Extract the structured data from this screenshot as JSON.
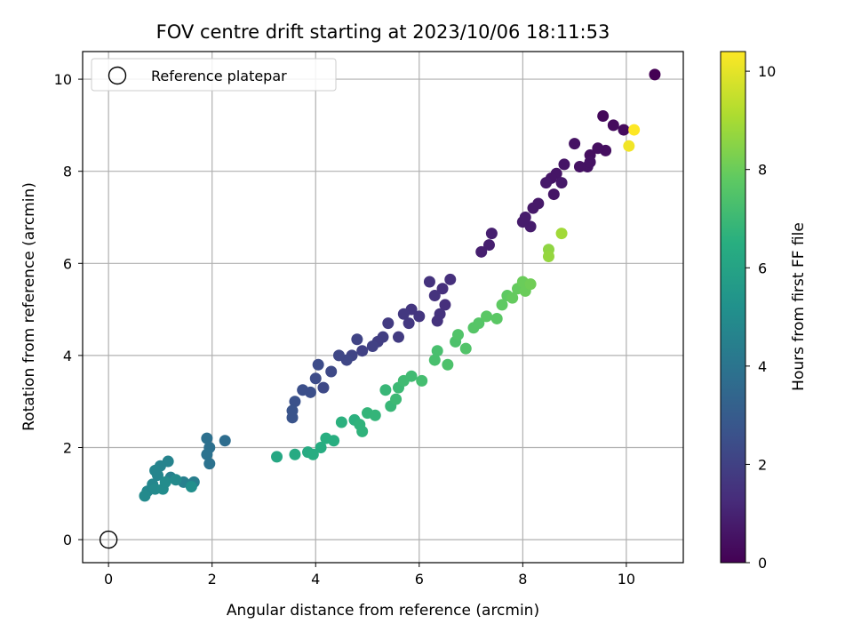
{
  "chart_data": {
    "type": "scatter",
    "title": "FOV centre drift starting at 2023/10/06 18:11:53",
    "xlabel": "Angular distance from reference (arcmin)",
    "ylabel": "Rotation from reference (arcmin)",
    "xlim": [
      -0.5,
      11.1
    ],
    "ylim": [
      -0.5,
      10.6
    ],
    "xticks": [
      0,
      2,
      4,
      6,
      8,
      10
    ],
    "yticks": [
      0,
      2,
      4,
      6,
      8,
      10
    ],
    "grid": true,
    "legend": {
      "placement": "top-left",
      "entries": [
        "Reference platepar"
      ]
    },
    "reference_point": {
      "x": 0,
      "y": 0
    },
    "colorbar": {
      "label": "Hours from first FF file",
      "range": [
        0,
        10.4
      ],
      "ticks": [
        0,
        2,
        4,
        6,
        8,
        10
      ],
      "colormap": "viridis"
    },
    "points": [
      [
        10.55,
        10.1,
        0.0
      ],
      [
        9.55,
        9.2,
        0.2
      ],
      [
        9.75,
        9.0,
        0.3
      ],
      [
        9.95,
        8.9,
        0.3
      ],
      [
        9.6,
        8.45,
        0.4
      ],
      [
        9.45,
        8.5,
        0.4
      ],
      [
        9.3,
        8.35,
        0.4
      ],
      [
        9.25,
        8.1,
        0.5
      ],
      [
        9.1,
        8.1,
        0.5
      ],
      [
        9.0,
        8.6,
        0.5
      ],
      [
        9.3,
        8.2,
        0.5
      ],
      [
        8.8,
        8.15,
        0.6
      ],
      [
        8.65,
        7.95,
        0.6
      ],
      [
        8.55,
        7.85,
        0.6
      ],
      [
        8.6,
        7.5,
        0.6
      ],
      [
        8.3,
        7.3,
        0.7
      ],
      [
        8.45,
        7.75,
        0.7
      ],
      [
        8.75,
        7.75,
        0.7
      ],
      [
        8.2,
        7.2,
        0.7
      ],
      [
        8.05,
        7.0,
        0.8
      ],
      [
        8.15,
        6.8,
        0.8
      ],
      [
        8.0,
        6.9,
        0.8
      ],
      [
        7.4,
        6.65,
        0.9
      ],
      [
        7.35,
        6.4,
        0.9
      ],
      [
        7.2,
        6.25,
        0.9
      ],
      [
        6.6,
        5.65,
        1.4
      ],
      [
        6.45,
        5.45,
        1.4
      ],
      [
        6.3,
        5.3,
        1.5
      ],
      [
        6.2,
        5.6,
        1.5
      ],
      [
        6.0,
        4.85,
        1.6
      ],
      [
        5.85,
        5.0,
        1.6
      ],
      [
        5.7,
        4.9,
        1.7
      ],
      [
        5.8,
        4.7,
        1.7
      ],
      [
        5.6,
        4.4,
        1.8
      ],
      [
        5.4,
        4.7,
        1.8
      ],
      [
        5.3,
        4.4,
        1.9
      ],
      [
        5.2,
        4.3,
        1.9
      ],
      [
        5.1,
        4.2,
        2.0
      ],
      [
        4.9,
        4.1,
        2.0
      ],
      [
        4.8,
        4.35,
        2.1
      ],
      [
        4.7,
        4.0,
        2.1
      ],
      [
        4.6,
        3.9,
        2.2
      ],
      [
        4.45,
        4.0,
        2.2
      ],
      [
        4.3,
        3.65,
        2.3
      ],
      [
        4.15,
        3.3,
        2.3
      ],
      [
        4.05,
        3.8,
        2.4
      ],
      [
        4.0,
        3.5,
        2.4
      ],
      [
        3.9,
        3.2,
        2.5
      ],
      [
        3.75,
        3.25,
        2.5
      ],
      [
        3.6,
        3.0,
        2.6
      ],
      [
        3.55,
        2.8,
        2.7
      ],
      [
        3.55,
        2.65,
        2.7
      ],
      [
        6.5,
        5.1,
        1.4
      ],
      [
        6.4,
        4.9,
        1.5
      ],
      [
        6.35,
        4.75,
        1.5
      ],
      [
        1.9,
        2.2,
        3.8
      ],
      [
        1.95,
        2.0,
        3.8
      ],
      [
        1.9,
        1.85,
        3.9
      ],
      [
        1.95,
        1.65,
        3.9
      ],
      [
        2.25,
        2.15,
        3.7
      ],
      [
        1.65,
        1.25,
        4.4
      ],
      [
        1.45,
        1.25,
        4.5
      ],
      [
        1.2,
        1.35,
        4.5
      ],
      [
        1.15,
        1.7,
        4.6
      ],
      [
        1.0,
        1.6,
        4.6
      ],
      [
        0.95,
        1.4,
        4.7
      ],
      [
        0.9,
        1.5,
        4.7
      ],
      [
        0.85,
        1.2,
        4.8
      ],
      [
        0.75,
        1.05,
        4.8
      ],
      [
        0.7,
        0.95,
        4.9
      ],
      [
        0.9,
        1.1,
        4.9
      ],
      [
        1.05,
        1.1,
        5.0
      ],
      [
        1.1,
        1.25,
        5.0
      ],
      [
        1.3,
        1.3,
        4.9
      ],
      [
        1.6,
        1.15,
        5.1
      ],
      [
        3.25,
        1.8,
        6.2
      ],
      [
        3.6,
        1.85,
        6.3
      ],
      [
        3.85,
        1.9,
        6.3
      ],
      [
        3.95,
        1.85,
        6.4
      ],
      [
        4.1,
        2.0,
        6.4
      ],
      [
        4.2,
        2.2,
        6.5
      ],
      [
        4.35,
        2.15,
        6.5
      ],
      [
        4.5,
        2.55,
        6.6
      ],
      [
        4.75,
        2.6,
        6.6
      ],
      [
        4.85,
        2.5,
        6.7
      ],
      [
        4.9,
        2.35,
        6.7
      ],
      [
        5.0,
        2.75,
        6.8
      ],
      [
        5.15,
        2.7,
        6.8
      ],
      [
        5.35,
        3.25,
        6.9
      ],
      [
        5.45,
        2.9,
        6.9
      ],
      [
        5.55,
        3.05,
        7.0
      ],
      [
        5.6,
        3.3,
        7.0
      ],
      [
        5.7,
        3.45,
        7.1
      ],
      [
        5.85,
        3.55,
        7.1
      ],
      [
        6.05,
        3.45,
        7.2
      ],
      [
        6.3,
        3.9,
        7.3
      ],
      [
        6.35,
        4.1,
        7.3
      ],
      [
        6.55,
        3.8,
        7.4
      ],
      [
        6.7,
        4.3,
        7.4
      ],
      [
        6.75,
        4.45,
        7.5
      ],
      [
        6.9,
        4.15,
        7.5
      ],
      [
        7.05,
        4.6,
        7.6
      ],
      [
        7.15,
        4.7,
        7.6
      ],
      [
        7.3,
        4.85,
        7.7
      ],
      [
        7.5,
        4.8,
        7.7
      ],
      [
        7.6,
        5.1,
        7.8
      ],
      [
        7.7,
        5.3,
        7.8
      ],
      [
        7.8,
        5.25,
        7.9
      ],
      [
        7.9,
        5.45,
        7.9
      ],
      [
        8.0,
        5.6,
        8.0
      ],
      [
        8.05,
        5.4,
        8.0
      ],
      [
        8.15,
        5.55,
        8.1
      ],
      [
        8.5,
        6.3,
        8.6
      ],
      [
        8.5,
        6.15,
        8.7
      ],
      [
        8.75,
        6.65,
        8.9
      ],
      [
        10.05,
        8.55,
        10.2
      ],
      [
        10.15,
        8.9,
        10.4
      ]
    ]
  }
}
